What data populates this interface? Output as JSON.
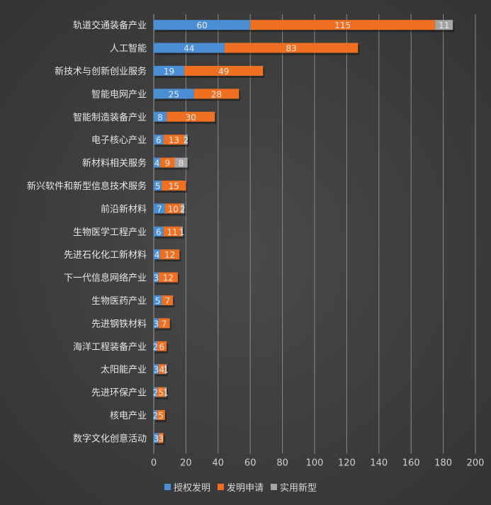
{
  "chart_data": {
    "type": "bar",
    "orientation": "horizontal",
    "stacked": true,
    "categories": [
      "轨道交通装备产业",
      "人工智能",
      "新技术与创新创业服务",
      "智能电网产业",
      "智能制造装备产业",
      "电子核心产业",
      "新材料相关服务",
      "新兴软件和新型信息技术服务",
      "前沿新材料",
      "生物医学工程产业",
      "先进石化化工新材料",
      "下一代信息网络产业",
      "生物医药产业",
      "先进钢铁材料",
      "海洋工程装备产业",
      "太阳能产业",
      "先进环保产业",
      "核电产业",
      "数字文化创意活动"
    ],
    "series": [
      {
        "name": "授权发明",
        "color": "#4a8fd4",
        "values": [
          60,
          44,
          19,
          25,
          8,
          6,
          4,
          5,
          7,
          6,
          4,
          3,
          5,
          3,
          2,
          3,
          2,
          2,
          3
        ]
      },
      {
        "name": "发明申请",
        "color": "#f07022",
        "values": [
          115,
          83,
          49,
          28,
          30,
          13,
          9,
          15,
          10,
          11,
          12,
          12,
          7,
          7,
          6,
          4,
          5,
          5,
          3
        ]
      },
      {
        "name": "实用新型",
        "color": "#a5a5a5",
        "values": [
          11,
          null,
          null,
          null,
          null,
          2,
          8,
          null,
          2,
          1,
          null,
          null,
          null,
          null,
          null,
          1,
          1,
          null,
          null
        ]
      }
    ],
    "xlim": [
      0,
      200
    ],
    "xticks": [
      0,
      20,
      40,
      60,
      80,
      100,
      120,
      140,
      160,
      180,
      200
    ],
    "grid": true,
    "legend": "bottom"
  }
}
